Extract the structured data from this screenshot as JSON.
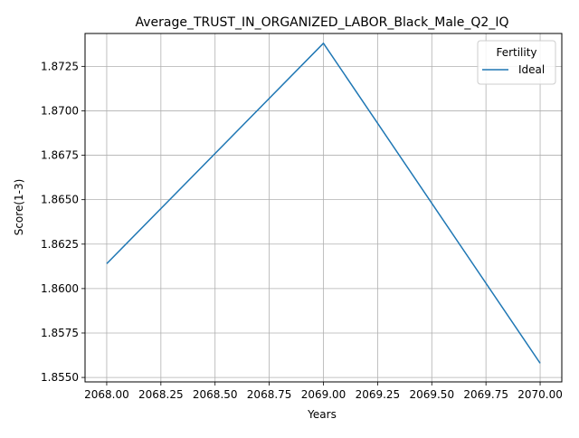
{
  "chart_data": {
    "type": "line",
    "title": "Average_TRUST_IN_ORGANIZED_LABOR_Black_Male_Q2_IQ",
    "xlabel": "Years",
    "ylabel": "Score(1-3)",
    "xlim": [
      2067.9,
      2070.1
    ],
    "ylim": [
      1.85475,
      1.87435
    ],
    "x_ticks": [
      2068.0,
      2068.25,
      2068.5,
      2068.75,
      2069.0,
      2069.25,
      2069.5,
      2069.75,
      2070.0
    ],
    "x_tick_labels": [
      "2068.00",
      "2068.25",
      "2068.50",
      "2068.75",
      "2069.00",
      "2069.25",
      "2069.50",
      "2069.75",
      "2070.00"
    ],
    "y_ticks": [
      1.855,
      1.8575,
      1.86,
      1.8625,
      1.865,
      1.8675,
      1.87,
      1.8725
    ],
    "y_tick_labels": [
      "1.8550",
      "1.8575",
      "1.8600",
      "1.8625",
      "1.8650",
      "1.8675",
      "1.8700",
      "1.8725"
    ],
    "grid": true,
    "legend": {
      "title": "Fertility",
      "placement": "top-right"
    },
    "series": [
      {
        "name": "Ideal",
        "color": "#1f77b4",
        "x": [
          2068,
          2069,
          2070
        ],
        "y": [
          1.8614,
          1.8738,
          1.8558
        ]
      }
    ]
  }
}
